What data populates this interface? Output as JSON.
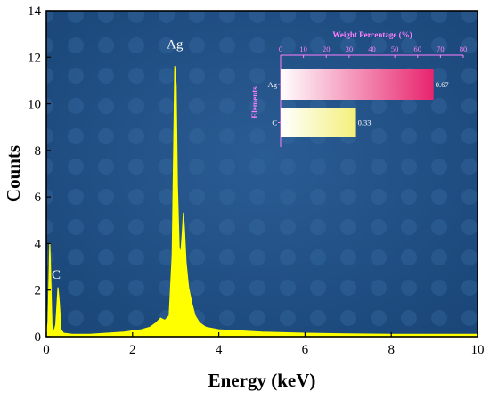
{
  "chart_data": [
    {
      "type": "line",
      "xlabel": "Energy (keV)",
      "ylabel": "Counts",
      "xlim": [
        0,
        10
      ],
      "ylim": [
        0,
        14
      ],
      "xticks": [
        0,
        2,
        4,
        6,
        8,
        10
      ],
      "yticks": [
        0,
        2,
        4,
        6,
        8,
        10,
        12,
        14
      ],
      "grid": false,
      "line_color": "#ffff00",
      "background_color": "#1f4e86",
      "peaks": [
        {
          "label": "C",
          "x": 0.27,
          "y": 2.1
        },
        {
          "label": "Ag",
          "x": 2.98,
          "y": 11.6
        }
      ],
      "series": [
        {
          "values": [
            [
              0.0,
              0.1
            ],
            [
              0.04,
              0.6
            ],
            [
              0.08,
              4.0
            ],
            [
              0.1,
              2.8
            ],
            [
              0.13,
              0.5
            ],
            [
              0.17,
              0.2
            ],
            [
              0.22,
              0.5
            ],
            [
              0.27,
              2.1
            ],
            [
              0.3,
              1.5
            ],
            [
              0.34,
              0.3
            ],
            [
              0.4,
              0.15
            ],
            [
              0.6,
              0.1
            ],
            [
              1.0,
              0.1
            ],
            [
              1.4,
              0.15
            ],
            [
              1.8,
              0.2
            ],
            [
              2.0,
              0.25
            ],
            [
              2.2,
              0.3
            ],
            [
              2.4,
              0.4
            ],
            [
              2.55,
              0.6
            ],
            [
              2.65,
              0.8
            ],
            [
              2.75,
              0.7
            ],
            [
              2.85,
              0.9
            ],
            [
              2.92,
              3.5
            ],
            [
              2.96,
              9.0
            ],
            [
              2.98,
              11.6
            ],
            [
              3.01,
              10.8
            ],
            [
              3.04,
              6.5
            ],
            [
              3.08,
              3.8
            ],
            [
              3.12,
              3.6
            ],
            [
              3.15,
              4.4
            ],
            [
              3.18,
              5.3
            ],
            [
              3.2,
              4.7
            ],
            [
              3.24,
              3.2
            ],
            [
              3.3,
              2.1
            ],
            [
              3.38,
              1.4
            ],
            [
              3.45,
              0.9
            ],
            [
              3.55,
              0.6
            ],
            [
              3.7,
              0.4
            ],
            [
              4.0,
              0.3
            ],
            [
              4.5,
              0.25
            ],
            [
              5.0,
              0.2
            ],
            [
              6.0,
              0.15
            ],
            [
              7.0,
              0.12
            ],
            [
              8.0,
              0.1
            ],
            [
              9.0,
              0.1
            ],
            [
              10.0,
              0.1
            ]
          ]
        }
      ]
    },
    {
      "type": "bar",
      "orientation": "horizontal",
      "title": "Weight Percentage (%)",
      "ylabel": "Elements",
      "xlim": [
        0,
        80
      ],
      "xticks": [
        0,
        10,
        20,
        30,
        40,
        50,
        60,
        70,
        80
      ],
      "categories": [
        "Ag",
        "C"
      ],
      "values": [
        67,
        33
      ],
      "data_labels": [
        "0.67",
        "0.33"
      ],
      "colors": [
        "#e8246e",
        "#f3f07a"
      ]
    }
  ]
}
